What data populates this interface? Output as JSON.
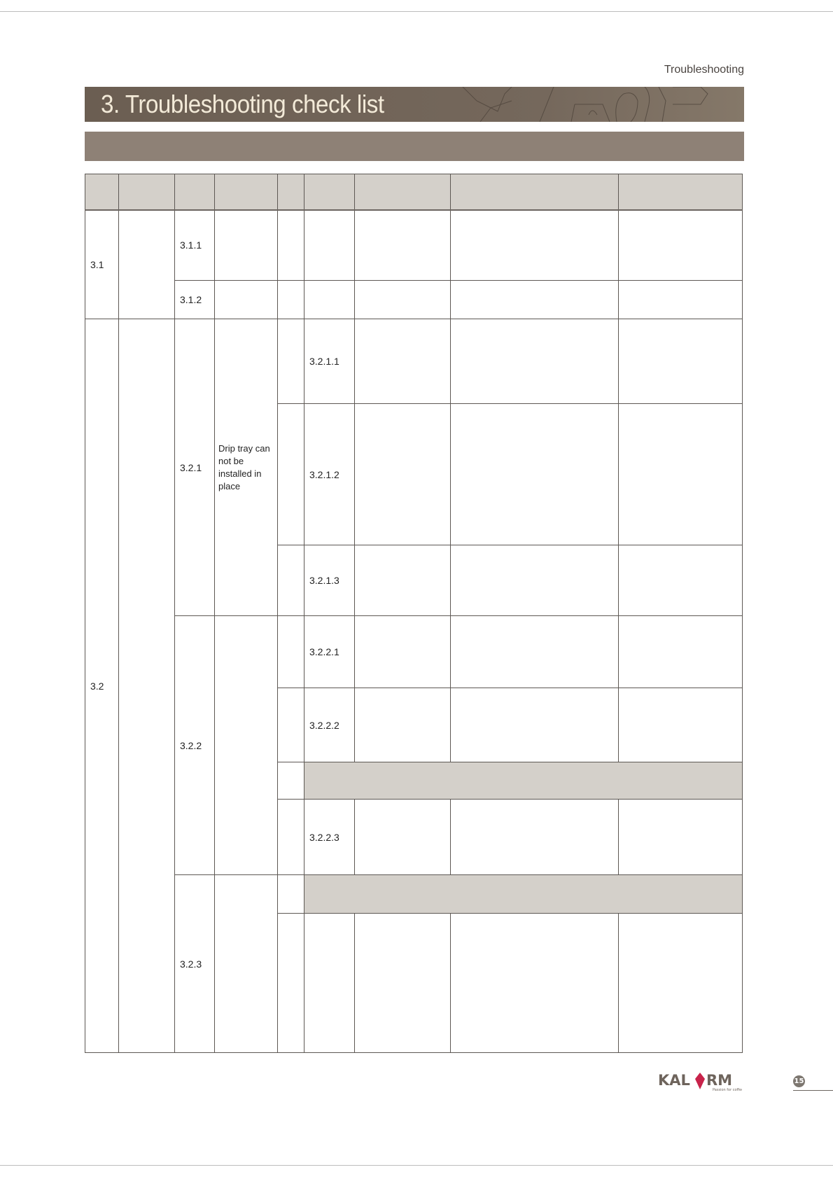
{
  "header": {
    "section": "Troubleshooting",
    "title": "3. Troubleshooting check list"
  },
  "table": {
    "r31": "3.1",
    "r311": "3.1.1",
    "r312": "3.1.2",
    "r32": "3.2",
    "r321": "3.2.1",
    "r321_desc": "Drip tray can not be installed in place",
    "r3211": "3.2.1.1",
    "r3212": "3.2.1.2",
    "r3213": "3.2.1.3",
    "r322": "3.2.2",
    "r3221": "3.2.2.1",
    "r3222": "3.2.2.2",
    "r3223": "3.2.2.3",
    "r323": "3.2.3"
  },
  "footer": {
    "logo": "KALERM",
    "tagline": "Passion for coffee",
    "page": "15",
    "logo_color": "#c8234a"
  }
}
